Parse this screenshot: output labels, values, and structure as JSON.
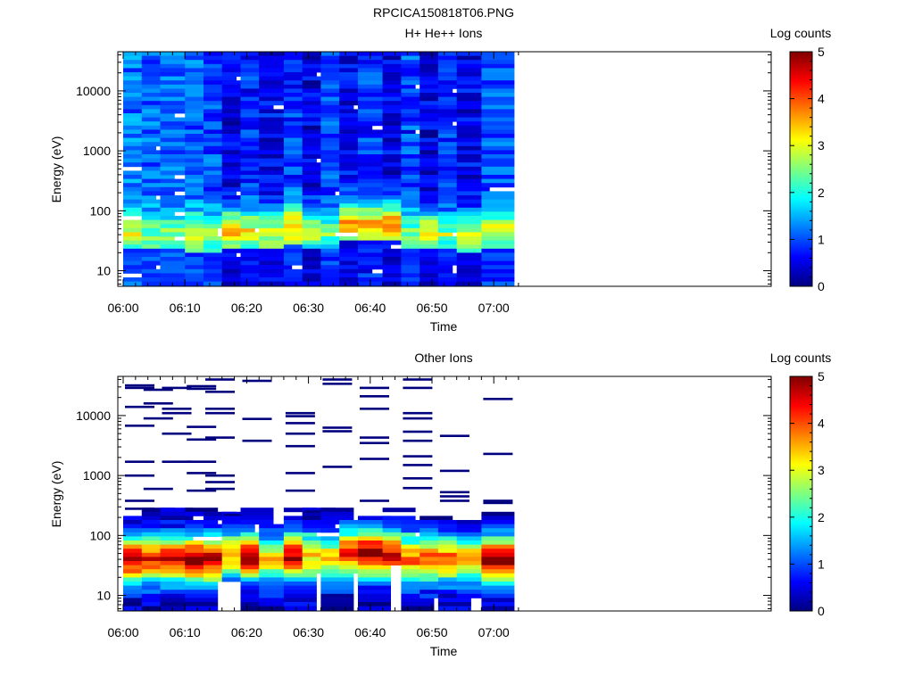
{
  "figure_title": "RPCICA150818T06.PNG",
  "colormap_stops": [
    "#00007f",
    "#0000ff",
    "#007fff",
    "#00ffff",
    "#7fff7f",
    "#ffff00",
    "#ff7f00",
    "#ff0000",
    "#7f0000"
  ],
  "chart_data": [
    {
      "type": "heatmap",
      "title": "H+ He++ Ions",
      "xlabel": "Time",
      "ylabel": "Energy (eV)",
      "x_ticks": [
        "06:00",
        "06:10",
        "06:20",
        "06:30",
        "06:40",
        "06:50",
        "07:00"
      ],
      "y_scale": "log",
      "ylim": [
        5.5,
        45000
      ],
      "y_ticks": [
        10,
        100,
        1000,
        10000
      ],
      "y_tick_labels": [
        "10",
        "100",
        "1000",
        "10000"
      ],
      "colorbar_label": "Log counts",
      "colorbar_range": [
        0,
        5
      ],
      "colorbar_ticks": [
        "0",
        "1",
        "2",
        "3",
        "4",
        "5"
      ],
      "x_bins": [
        "06:00",
        "06:03",
        "06:06",
        "06:10",
        "06:13",
        "06:16",
        "06:19",
        "06:22",
        "06:26",
        "06:29",
        "06:32",
        "06:35",
        "06:38",
        "06:42",
        "06:45",
        "06:48",
        "06:51",
        "06:54",
        "06:58"
      ],
      "energy_peak_eV": [
        42,
        42,
        40,
        38,
        38,
        45,
        45,
        42,
        50,
        45,
        42,
        55,
        55,
        55,
        42,
        42,
        40,
        38,
        45
      ],
      "peak_log_counts": [
        2.0,
        1.6,
        1.7,
        2.0,
        1.8,
        3.3,
        2.5,
        2.7,
        3.0,
        2.7,
        1.5,
        3.5,
        3.1,
        3.8,
        1.6,
        3.2,
        1.5,
        2.5,
        2.3
      ],
      "background_log_counts": [
        1.2,
        1.1,
        1.1,
        1.1,
        1.0,
        0.5,
        0.8,
        0.6,
        0.9,
        0.5,
        1.0,
        0.6,
        0.9,
        0.5,
        1.0,
        0.5,
        0.9,
        0.6,
        1.0
      ]
    },
    {
      "type": "heatmap",
      "title": "Other Ions",
      "xlabel": "Time",
      "ylabel": "Energy (eV)",
      "x_ticks": [
        "06:00",
        "06:10",
        "06:20",
        "06:30",
        "06:40",
        "06:50",
        "07:00"
      ],
      "y_scale": "log",
      "ylim": [
        5.5,
        45000
      ],
      "y_ticks": [
        10,
        100,
        1000,
        10000
      ],
      "y_tick_labels": [
        "10",
        "100",
        "1000",
        "10000"
      ],
      "colorbar_label": "Log counts",
      "colorbar_range": [
        0,
        5
      ],
      "colorbar_ticks": [
        "0",
        "1",
        "2",
        "3",
        "4",
        "5"
      ],
      "x_bins": [
        "06:00",
        "06:03",
        "06:06",
        "06:10",
        "06:13",
        "06:16",
        "06:19",
        "06:22",
        "06:26",
        "06:29",
        "06:32",
        "06:35",
        "06:38",
        "06:42",
        "06:45",
        "06:48",
        "06:51",
        "06:54",
        "06:58"
      ],
      "energy_peak_eV": [
        40,
        40,
        40,
        40,
        40,
        45,
        45,
        40,
        45,
        40,
        40,
        50,
        50,
        45,
        40,
        40,
        40,
        40,
        40
      ],
      "peak_log_counts": [
        4.3,
        4.0,
        4.2,
        4.5,
        4.3,
        3.3,
        4.5,
        3.0,
        4.4,
        3.0,
        3.0,
        4.0,
        4.4,
        4.3,
        3.5,
        3.5,
        3.5,
        3.3,
        4.5
      ],
      "upper_limit_eV": [
        200,
        280,
        280,
        280,
        230,
        230,
        300,
        160,
        300,
        300,
        290,
        170,
        210,
        270,
        170,
        230,
        170,
        170,
        300
      ],
      "lower_limit_eV": [
        6,
        6,
        6,
        6,
        16,
        16,
        6,
        6,
        6,
        25,
        6,
        25,
        6,
        30,
        6,
        9,
        6,
        9,
        6
      ],
      "sparse_lines_eV": [
        [
          32000,
          29000,
          14000,
          6800,
          1700,
          1000,
          380,
          280
        ],
        [
          27000,
          16000,
          9000,
          600
        ],
        [
          29000,
          13000,
          11000,
          5000,
          1700
        ],
        [
          31000,
          28000,
          6500,
          4000,
          1700,
          1100,
          560
        ],
        [
          40000,
          25000,
          13000,
          11000,
          4300,
          1000,
          780,
          600
        ],
        [
          220
        ],
        [
          38000,
          8800,
          3800
        ],
        [],
        [
          11000,
          9800,
          7500,
          5000,
          3100,
          1100,
          560
        ],
        [
          250
        ],
        [
          40000,
          34000,
          6300,
          5500,
          1400
        ],
        [],
        [
          29000,
          21000,
          13000,
          4300,
          3500,
          1900,
          380
        ],
        [],
        [
          40000,
          29000,
          11000,
          9000,
          5400,
          3800,
          2100,
          1500,
          900,
          620
        ],
        [],
        [
          4600,
          1200,
          530,
          450,
          380
        ],
        [],
        [
          19000,
          2300,
          380,
          350
        ]
      ]
    }
  ]
}
